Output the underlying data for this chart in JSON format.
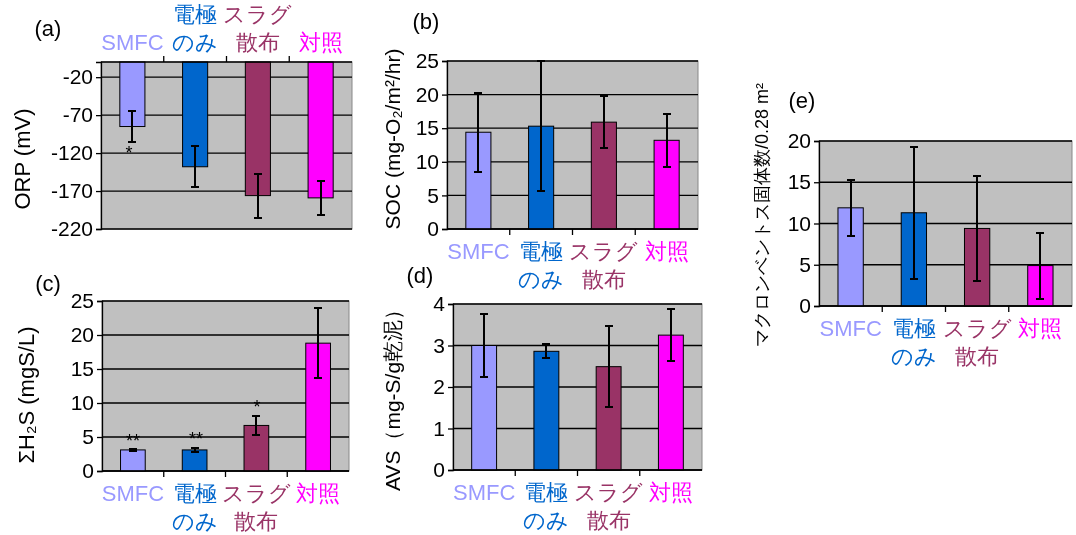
{
  "chart_data": [
    {
      "type": "bar",
      "title": "(a)",
      "ylabel": "ORP (mV)",
      "categories": [
        "SMFC",
        "電極のみ",
        "スラグ散布",
        "対照"
      ],
      "values": [
        -85,
        -138,
        -176,
        -179
      ],
      "errors": [
        20,
        27,
        29,
        22
      ],
      "colors": [
        "#9999ff",
        "#0066cc",
        "#993366",
        "#ff00ff"
      ],
      "ylim": [
        -220,
        0
      ],
      "yticks": [
        -20,
        -70,
        -120,
        -170,
        -220
      ],
      "grid": "y",
      "annotations": [
        "*"
      ]
    },
    {
      "type": "bar",
      "title": "(b)",
      "ylabel": "SOC (mg-O₂/m²/hr)",
      "categories": [
        "SMFC",
        "電極のみ",
        "スラグ散布",
        "対照"
      ],
      "values": [
        14.4,
        15.3,
        15.9,
        13.2
      ],
      "errors": [
        5.9,
        9.7,
        3.9,
        3.9
      ],
      "colors": [
        "#9999ff",
        "#0066cc",
        "#993366",
        "#ff00ff"
      ],
      "ylim": [
        0,
        25
      ],
      "yticks": [
        0,
        5,
        10,
        15,
        20,
        25
      ],
      "grid": "y"
    },
    {
      "type": "bar",
      "title": "(c)",
      "ylabel": "ΣH₂S (mgS/L)",
      "categories": [
        "SMFC",
        "電極のみ",
        "スラグ散布",
        "対照"
      ],
      "values": [
        3.1,
        3.1,
        6.7,
        18.8
      ],
      "errors": [
        0.15,
        0.3,
        1.4,
        5.1
      ],
      "colors": [
        "#9999ff",
        "#0066cc",
        "#993366",
        "#ff00ff"
      ],
      "ylim": [
        0,
        25
      ],
      "yticks": [
        0,
        5,
        10,
        15,
        20,
        25
      ],
      "grid": "y",
      "annotations": [
        "**",
        "**",
        "*"
      ]
    },
    {
      "type": "bar",
      "title": "(d)",
      "ylabel": "AVS（mg-S/g乾泥）",
      "categories": [
        "SMFC",
        "電極のみ",
        "スラグ散布",
        "対照"
      ],
      "values": [
        3.0,
        2.86,
        2.49,
        3.25
      ],
      "errors": [
        0.76,
        0.17,
        0.97,
        0.63
      ],
      "colors": [
        "#9999ff",
        "#0066cc",
        "#993366",
        "#ff00ff"
      ],
      "ylim": [
        0,
        4
      ],
      "yticks": [
        0,
        1,
        2,
        3,
        4
      ],
      "grid": "y"
    },
    {
      "type": "bar",
      "title": "(e)",
      "ylabel": "マクロンベントス固体数/0.28 m²",
      "categories": [
        "SMFC",
        "電極のみ",
        "スラグ散布",
        "対照"
      ],
      "values": [
        11.9,
        11.3,
        9.4,
        4.9
      ],
      "errors": [
        3.4,
        8.0,
        6.4,
        4.0
      ],
      "colors": [
        "#9999ff",
        "#0066cc",
        "#993366",
        "#ff00ff"
      ],
      "ylim": [
        0,
        20
      ],
      "yticks": [
        0,
        5,
        10,
        15,
        20
      ],
      "grid": "y"
    }
  ]
}
